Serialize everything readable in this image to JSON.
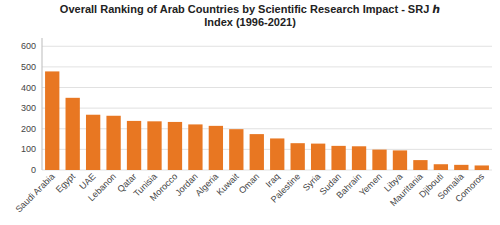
{
  "chart_data": {
    "type": "bar",
    "title": "Overall Ranking of Arab Countries by Scientific Research Impact - SRJ ℎ\nIndex (1996-2021)",
    "categories": [
      "Saudi Arabia",
      "Egypt",
      "UAE",
      "Lebanon",
      "Qatar",
      "Tunisia",
      "Morocco",
      "Jordan",
      "Algeria",
      "Kuwait",
      "Oman",
      "Iraq",
      "Palestine",
      "Syria",
      "Sudan",
      "Bahrain",
      "Yemen",
      "Libya",
      "Mauritania",
      "Djibouti",
      "Somalia",
      "Comoros"
    ],
    "values": [
      478,
      350,
      268,
      263,
      238,
      236,
      233,
      221,
      214,
      198,
      174,
      153,
      130,
      128,
      117,
      115,
      99,
      95,
      48,
      28,
      25,
      22
    ],
    "color": "#E87722",
    "ylim": [
      0,
      640
    ],
    "yticks": [
      0,
      100,
      200,
      300,
      400,
      500,
      600
    ],
    "grid": true
  }
}
